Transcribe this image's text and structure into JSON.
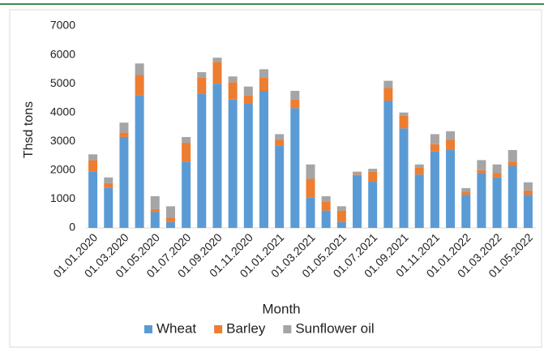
{
  "chart_data": {
    "type": "bar",
    "stacked": true,
    "y_label": "Thsd tons",
    "x_label": "Month",
    "categories": [
      "01.01.2020",
      null,
      "01.03.2020",
      null,
      "01.05.2020",
      null,
      "01.07.2020",
      null,
      "01.09.2020",
      null,
      "01.11.2020",
      null,
      "01.01.2021",
      null,
      "01.03.2021",
      null,
      "01.05.2021",
      null,
      "01.07.2021",
      null,
      "01.09.2021",
      null,
      "01.11.2021",
      null,
      "01.01.2022",
      null,
      "01.03.2022",
      null,
      "01.05.2022"
    ],
    "series": [
      {
        "name": "Wheat",
        "color": "#5b9bd5",
        "values": [
          1950,
          1400,
          3150,
          4600,
          550,
          200,
          2300,
          4650,
          5000,
          4450,
          4300,
          4750,
          2850,
          4150,
          1050,
          600,
          200,
          1800,
          1600,
          4400,
          3450,
          1850,
          2650,
          2700,
          1150,
          1900,
          1750,
          2150,
          1150
        ]
      },
      {
        "name": "Barley",
        "color": "#ed7d31",
        "values": [
          400,
          150,
          150,
          700,
          100,
          150,
          650,
          550,
          750,
          600,
          300,
          450,
          200,
          300,
          650,
          300,
          400,
          50,
          350,
          450,
          450,
          250,
          250,
          350,
          100,
          100,
          150,
          150,
          150
        ]
      },
      {
        "name": "Sunflower oil",
        "color": "#a5a5a5",
        "values": [
          200,
          200,
          350,
          400,
          450,
          400,
          200,
          200,
          150,
          200,
          300,
          300,
          200,
          300,
          500,
          200,
          150,
          100,
          100,
          250,
          100,
          100,
          350,
          300,
          130,
          350,
          300,
          400,
          280
        ]
      }
    ],
    "ylim": [
      0,
      7000
    ],
    "yticks": [
      0,
      1000,
      2000,
      3000,
      4000,
      5000,
      6000,
      7000
    ],
    "legend": "bottom"
  }
}
